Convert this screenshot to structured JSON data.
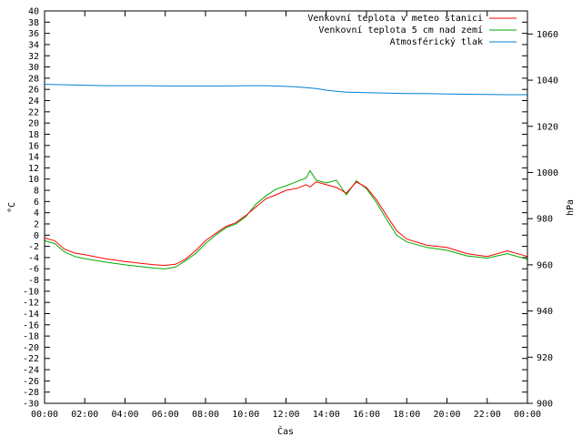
{
  "chart_data": {
    "type": "line",
    "xlabel": "Čas",
    "ylabel_left": "°C",
    "ylabel_right": "hPa",
    "ylim_left": [
      -30,
      40
    ],
    "ylim_right": [
      900,
      1070
    ],
    "xlim_hours": [
      0,
      24
    ],
    "grid": false,
    "legend_position": "top-right",
    "x_ticks": [
      "00:00",
      "02:00",
      "04:00",
      "06:00",
      "08:00",
      "10:00",
      "12:00",
      "14:00",
      "16:00",
      "18:00",
      "20:00",
      "22:00",
      "00:00"
    ],
    "y_ticks_left": [
      40,
      38,
      36,
      34,
      32,
      30,
      28,
      26,
      24,
      22,
      20,
      18,
      16,
      14,
      12,
      10,
      8,
      6,
      4,
      2,
      0,
      -2,
      -4,
      -6,
      -8,
      -10,
      -12,
      -14,
      -16,
      -18,
      -20,
      -22,
      -24,
      -26,
      -28,
      -30
    ],
    "y_ticks_right": [
      1060,
      1040,
      1020,
      1000,
      980,
      960,
      940,
      920,
      900
    ],
    "series": [
      {
        "name": "Venkovní teplota v meteo stanici",
        "color": "#ff0000",
        "axis": "left",
        "x": [
          0,
          0.5,
          1,
          1.5,
          2,
          3,
          4,
          5,
          5.5,
          6,
          6.5,
          7,
          7.5,
          8,
          8.5,
          9,
          9.5,
          10,
          10.5,
          11,
          11.5,
          12,
          12.5,
          13,
          13.2,
          13.5,
          14,
          14.5,
          15,
          15.5,
          16,
          16.5,
          17,
          17.5,
          18,
          19,
          20,
          21,
          22,
          23,
          24
        ],
        "values": [
          -0.5,
          -1,
          -2.5,
          -3.2,
          -3.5,
          -4.2,
          -4.7,
          -5.1,
          -5.3,
          -5.4,
          -5.2,
          -4.3,
          -2.8,
          -1,
          0.3,
          1.5,
          2.2,
          3.5,
          5,
          6.5,
          7.2,
          8,
          8.3,
          9,
          8.6,
          9.5,
          9,
          8.5,
          7.5,
          9.5,
          8.5,
          6.3,
          3.5,
          0.8,
          -0.7,
          -1.8,
          -2.2,
          -3.3,
          -3.8,
          -2.8,
          -3.8
        ]
      },
      {
        "name": "Venkovní teplota 5 cm nad zemí",
        "color": "#00aa00",
        "axis": "left",
        "x": [
          0,
          0.5,
          1,
          1.5,
          2,
          3,
          4,
          5,
          5.5,
          6,
          6.5,
          7,
          7.5,
          8,
          8.5,
          9,
          9.5,
          10,
          10.5,
          11,
          11.5,
          12,
          12.5,
          13,
          13.2,
          13.5,
          14,
          14.5,
          15,
          15.5,
          16,
          16.5,
          17,
          17.5,
          18,
          19,
          20,
          21,
          22,
          23,
          24
        ],
        "values": [
          -1,
          -1.5,
          -3,
          -3.8,
          -4.2,
          -4.8,
          -5.3,
          -5.7,
          -5.9,
          -6,
          -5.7,
          -4.6,
          -3.3,
          -1.5,
          0,
          1.3,
          2,
          3.3,
          5.5,
          7,
          8.2,
          8.8,
          9.5,
          10.2,
          11.5,
          9.8,
          9.3,
          9.8,
          7.2,
          9.7,
          8.3,
          5.8,
          2.8,
          0,
          -1.2,
          -2.2,
          -2.7,
          -3.7,
          -4.1,
          -3.3,
          -4.3
        ]
      },
      {
        "name": "Atmosférický tlak",
        "color": "#0080d0",
        "axis": "right",
        "x": [
          0,
          1,
          2,
          3,
          4,
          5,
          6,
          7,
          8,
          9,
          10,
          11,
          12,
          12.5,
          13,
          13.5,
          14,
          14.5,
          15,
          16,
          17,
          18,
          19,
          20,
          21,
          22,
          23,
          24
        ],
        "values": [
          1038.2,
          1038,
          1037.8,
          1037.6,
          1037.6,
          1037.6,
          1037.5,
          1037.5,
          1037.5,
          1037.5,
          1037.6,
          1037.6,
          1037.3,
          1037.1,
          1036.8,
          1036.4,
          1035.7,
          1035.2,
          1034.8,
          1034.6,
          1034.4,
          1034.2,
          1034.2,
          1034,
          1033.9,
          1033.8,
          1033.7,
          1033.7
        ]
      }
    ]
  }
}
